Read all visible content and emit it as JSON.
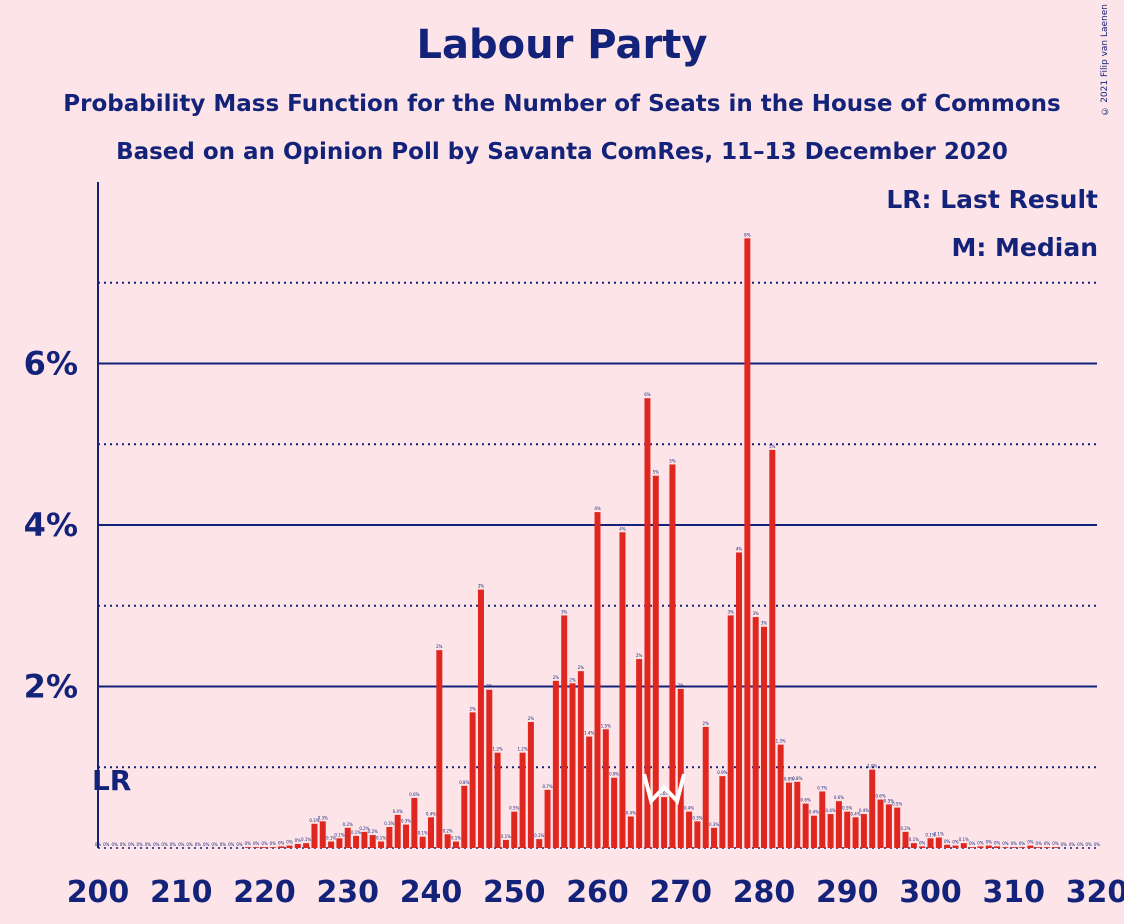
{
  "title": "Labour Party",
  "subtitle": "Probability Mass Function for the Number of Seats in the House of Commons",
  "subtitle2": "Based on an Opinion Poll by Savanta ComRes, 11–13 December 2020",
  "copyright": "© 2021 Filip van Laenen",
  "legend": {
    "lr": "LR: Last Result",
    "median": "M: Median"
  },
  "colors": {
    "background": "#fde4e8",
    "bar": "#e0271f",
    "axis": "#14237a",
    "median_marker": "#ffffff"
  },
  "chart_data": {
    "type": "bar",
    "title": "Labour Party",
    "subtitle": "Probability Mass Function for the Number of Seats in the House of Commons",
    "xlabel": "",
    "ylabel": "",
    "xlim": [
      200,
      320
    ],
    "ylim": [
      0,
      8
    ],
    "x_ticks": [
      "200",
      "210",
      "220",
      "230",
      "240",
      "250",
      "260",
      "270",
      "280",
      "290",
      "300",
      "310",
      "320"
    ],
    "y_ticks": [
      {
        "value": 2,
        "label": "2%"
      },
      {
        "value": 4,
        "label": "4%"
      },
      {
        "value": 6,
        "label": "6%"
      }
    ],
    "gridlines": {
      "solid": [
        2,
        4,
        6
      ],
      "dotted": [
        1,
        3,
        5,
        7
      ]
    },
    "last_result": {
      "seat": 202,
      "label": "LR"
    },
    "median": {
      "seat": 268,
      "label": "M"
    },
    "seats": [
      200,
      201,
      202,
      203,
      204,
      205,
      206,
      207,
      208,
      209,
      210,
      211,
      212,
      213,
      214,
      215,
      216,
      217,
      218,
      219,
      220,
      221,
      222,
      223,
      224,
      225,
      226,
      227,
      228,
      229,
      230,
      231,
      232,
      233,
      234,
      235,
      236,
      237,
      238,
      239,
      240,
      241,
      242,
      243,
      244,
      245,
      246,
      247,
      248,
      249,
      250,
      251,
      252,
      253,
      254,
      255,
      256,
      257,
      258,
      259,
      260,
      261,
      262,
      263,
      264,
      265,
      266,
      267,
      268,
      269,
      270,
      271,
      272,
      273,
      274,
      275,
      276,
      277,
      278,
      279,
      280,
      281,
      282,
      283,
      284,
      285,
      286,
      287,
      288,
      289,
      290,
      291,
      292,
      293,
      294,
      295,
      296,
      297,
      298,
      299,
      300,
      301,
      302,
      303,
      304,
      305,
      306,
      307,
      308,
      309,
      310,
      311,
      312,
      313,
      314,
      315,
      316,
      317,
      318,
      319,
      320
    ],
    "values": [
      0,
      0,
      0,
      0,
      0,
      0,
      0,
      0,
      0,
      0,
      0,
      0,
      0,
      0,
      0,
      0,
      0,
      0,
      0.01,
      0.01,
      0.01,
      0.01,
      0.02,
      0.03,
      0.05,
      0.06,
      0.3,
      0.33,
      0.08,
      0.12,
      0.25,
      0.15,
      0.2,
      0.16,
      0.08,
      0.26,
      0.41,
      0.29,
      0.62,
      0.14,
      0.38,
      2.45,
      0.17,
      0.08,
      0.77,
      1.68,
      3.2,
      1.96,
      1.18,
      0.1,
      0.45,
      1.18,
      1.56,
      0.11,
      0.72,
      2.07,
      2.88,
      2.04,
      2.19,
      1.38,
      4.16,
      1.47,
      0.87,
      3.91,
      0.39,
      2.34,
      5.57,
      4.61,
      0.63,
      4.75,
      1.97,
      0.45,
      0.33,
      1.5,
      0.25,
      0.89,
      2.88,
      3.66,
      7.55,
      2.86,
      2.74,
      4.93,
      1.28,
      0.81,
      0.82,
      0.55,
      0.4,
      0.7,
      0.42,
      0.58,
      0.45,
      0.38,
      0.42,
      0.97,
      0.6,
      0.54,
      0.5,
      0.2,
      0.06,
      0.02,
      0.12,
      0.13,
      0.04,
      0.03,
      0.06,
      0.01,
      0.02,
      0.03,
      0.02,
      0.01,
      0.01,
      0.01,
      0.03,
      0.01,
      0.01,
      0.01,
      0,
      0,
      0,
      0,
      0
    ],
    "labels": [
      "0%",
      "0%",
      "0%",
      "0%",
      "0%",
      "0%",
      "0%",
      "0%",
      "0%",
      "0%",
      "0%",
      "0%",
      "0%",
      "0%",
      "0%",
      "0%",
      "0%",
      "0%",
      "0%",
      "0%",
      "0%",
      "0%",
      "0%",
      "0%",
      "0%",
      "0.1%",
      "0.3%",
      "0.3%",
      "0.1%",
      "0.1%",
      "0.2%",
      "0.1%",
      "0.2%",
      "0.2%",
      "0.1%",
      "0.3%",
      "0.4%",
      "0.3%",
      "0.6%",
      "0.1%",
      "0.4%",
      "2%",
      "0.2%",
      "0.1%",
      "0.8%",
      "2%",
      "3%",
      "2%",
      "1.2%",
      "0.1%",
      "0.5%",
      "1.2%",
      "2%",
      "0.1%",
      "0.7%",
      "2%",
      "3%",
      "2%",
      "2%",
      "1.4%",
      "4%",
      "1.5%",
      "0.9%",
      "4%",
      "0.4%",
      "2%",
      "6%",
      "5%",
      "0.6%",
      "5%",
      "2%",
      "0.4%",
      "0.3%",
      "2%",
      "0.3%",
      "0.9%",
      "3%",
      "4%",
      "8%",
      "3%",
      "3%",
      "5%",
      "1.3%",
      "0.8%",
      "0.8%",
      "0.6%",
      "0.4%",
      "0.7%",
      "0.4%",
      "0.6%",
      "0.5%",
      "0.4%",
      "0.4%",
      "1.0%",
      "0.6%",
      "0.5%",
      "0.5%",
      "0.2%",
      "0.1%",
      "0%",
      "0.1%",
      "0.1%",
      "0%",
      "0%",
      "0.1%",
      "0%",
      "0%",
      "0%",
      "0%",
      "0%",
      "0%",
      "0%",
      "0%",
      "0%",
      "0%",
      "0%",
      "0%",
      "0%",
      "0%",
      "0%",
      "0%"
    ]
  }
}
